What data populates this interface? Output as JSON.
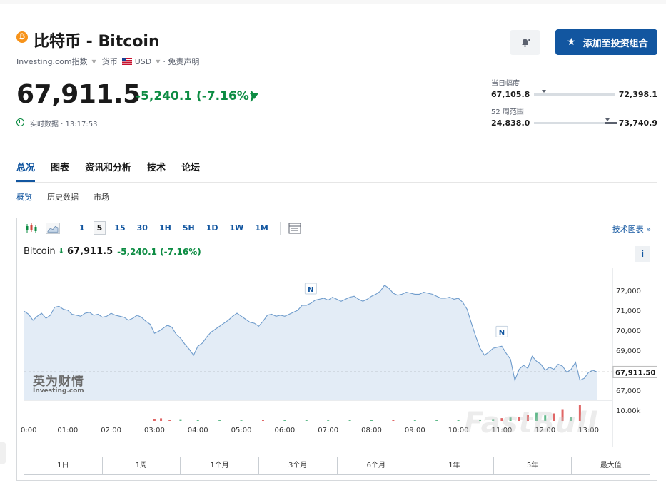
{
  "header": {
    "coin_symbol": "₿",
    "title": "比特币 - Bitcoin",
    "source": "Investing.com指数",
    "currency_label": "货币",
    "currency": "USD",
    "disclaimer": "· 免责声明"
  },
  "quote": {
    "price": "67,911.5",
    "change": "-5,240.1 (-7.16%)",
    "realtime": "实时数据 · 13:17:53",
    "change_color": "#0d8c43"
  },
  "actions": {
    "bell_icon": "bell-plus-icon",
    "add_portfolio": "添加至投资组合"
  },
  "ranges": {
    "day": {
      "label": "当日幅度",
      "low": "67,105.8",
      "high": "72,398.1",
      "position": 0.12
    },
    "week52": {
      "label": "52 周范围",
      "low": "24,838.0",
      "high": "73,740.9",
      "position": 0.88
    }
  },
  "tabs": [
    "总况",
    "图表",
    "资讯和分析",
    "技术",
    "论坛"
  ],
  "subtabs": [
    "概览",
    "历史数据",
    "市场"
  ],
  "chart_toolbar": {
    "intervals": [
      "1",
      "5",
      "15",
      "30",
      "1H",
      "5H",
      "1D",
      "1W",
      "1M"
    ],
    "active_interval": "5",
    "tech_chart_link": "技术图表 »"
  },
  "chart_legend": {
    "name": "Bitcoin",
    "price": "67,911.5",
    "change": "-5,240.1 (-7.16%)"
  },
  "chart_data": {
    "type": "area",
    "title": "",
    "xlabel": "",
    "ylabel": "",
    "x_ticks": [
      "0:00",
      "01:00",
      "02:00",
      "03:00",
      "04:00",
      "05:00",
      "06:00",
      "07:00",
      "08:00",
      "09:00",
      "10:00",
      "11:00",
      "12:00",
      "13:00"
    ],
    "y_ticks": [
      "72,000",
      "71,000",
      "70,000",
      "69,000",
      "68,000",
      "67,000"
    ],
    "ylim": [
      66500,
      73100
    ],
    "last_price_label": "67,911.50",
    "last_price": 67911.5,
    "volume_label": "10.00k",
    "news_markers": [
      {
        "hour": 6.6,
        "label": "N"
      },
      {
        "hour": 11.0,
        "label": "N"
      }
    ],
    "series": [
      {
        "x": [
          0,
          0.1,
          0.2,
          0.3,
          0.4,
          0.5,
          0.6,
          0.7,
          0.8,
          0.9,
          1.0,
          1.1,
          1.2,
          1.3,
          1.4,
          1.5,
          1.6,
          1.7,
          1.8,
          1.9,
          2.0,
          2.1,
          2.2,
          2.3,
          2.4,
          2.5,
          2.6,
          2.7,
          2.8,
          2.9,
          3.0,
          3.1,
          3.2,
          3.3,
          3.4,
          3.5,
          3.6,
          3.7,
          3.8,
          3.9,
          4.0,
          4.1,
          4.2,
          4.3,
          4.4,
          4.5,
          4.6,
          4.7,
          4.8,
          4.9,
          5.0,
          5.1,
          5.2,
          5.3,
          5.4,
          5.5,
          5.6,
          5.7,
          5.8,
          5.9,
          6.0,
          6.1,
          6.2,
          6.3,
          6.4,
          6.5,
          6.6,
          6.7,
          6.8,
          6.9,
          7.0,
          7.1,
          7.2,
          7.3,
          7.4,
          7.5,
          7.6,
          7.7,
          7.8,
          7.9,
          8.0,
          8.1,
          8.2,
          8.3,
          8.4,
          8.5,
          8.6,
          8.7,
          8.8,
          8.9,
          9.0,
          9.1,
          9.2,
          9.3,
          9.4,
          9.5,
          9.6,
          9.7,
          9.8,
          9.9,
          10.0,
          10.1,
          10.2,
          10.3,
          10.4,
          10.5,
          10.6,
          10.7,
          10.8,
          10.9,
          11.0,
          11.1,
          11.2,
          11.3,
          11.4,
          11.5,
          11.6,
          11.7,
          11.8,
          11.9,
          12.0,
          12.1,
          12.2,
          12.3,
          12.4,
          12.5,
          12.6,
          12.7,
          12.8,
          12.9,
          13.0,
          13.1,
          13.2
        ],
        "values": [
          70950,
          70800,
          70500,
          70700,
          70850,
          70600,
          70750,
          71150,
          71200,
          71050,
          71000,
          70800,
          70750,
          70700,
          70850,
          70900,
          70750,
          70800,
          70650,
          70700,
          70850,
          70750,
          70700,
          70650,
          70500,
          70600,
          70750,
          70650,
          70450,
          70300,
          69850,
          69950,
          70100,
          70250,
          70150,
          69800,
          69600,
          69300,
          69050,
          68750,
          69200,
          69350,
          69650,
          69900,
          70050,
          70200,
          70350,
          70500,
          70700,
          70850,
          70700,
          70550,
          70400,
          70350,
          70200,
          70450,
          70750,
          70800,
          70700,
          70750,
          70700,
          70800,
          70900,
          71000,
          71250,
          71250,
          71350,
          71500,
          71550,
          71600,
          71500,
          71650,
          71550,
          71450,
          71550,
          71650,
          71700,
          71550,
          71450,
          71550,
          71700,
          71800,
          71950,
          72250,
          72100,
          71850,
          71750,
          71800,
          71900,
          71850,
          71800,
          71800,
          71900,
          71850,
          71800,
          71700,
          71600,
          71600,
          71650,
          71550,
          71600,
          71400,
          71050,
          70350,
          69700,
          69100,
          68750,
          68900,
          69100,
          69150,
          69200,
          68850,
          68550,
          67500,
          68050,
          68250,
          68100,
          68700,
          68450,
          68300,
          68000,
          68150,
          68050,
          68300,
          68200,
          67900,
          68050,
          68400,
          67500,
          67600,
          67900,
          68000,
          67911
        ]
      }
    ],
    "volume": {
      "x": [
        3.0,
        3.15,
        3.35,
        3.6,
        4.0,
        4.5,
        5.0,
        5.5,
        6.0,
        6.5,
        7.0,
        7.5,
        8.0,
        8.5,
        9.0,
        9.5,
        10.0,
        10.5,
        10.8,
        11.0,
        11.2,
        11.4,
        11.6,
        11.8,
        12.0,
        12.2,
        12.4,
        12.6,
        12.8
      ],
      "values": [
        1.0,
        1.2,
        0.6,
        0.8,
        0.5,
        0.4,
        0.3,
        0.6,
        0.4,
        0.5,
        0.3,
        0.5,
        0.4,
        0.6,
        0.5,
        0.4,
        0.5,
        0.6,
        0.9,
        1.3,
        1.6,
        2.0,
        3.0,
        3.8,
        2.6,
        3.5,
        5.5,
        2.0,
        7.5
      ],
      "up": [
        true,
        true,
        true,
        false,
        false,
        false,
        false,
        true,
        false,
        false,
        false,
        false,
        false,
        true,
        false,
        false,
        false,
        false,
        false,
        true,
        false,
        true,
        true,
        false,
        false,
        true,
        true,
        false,
        true
      ]
    }
  },
  "periods": [
    "1日",
    "1周",
    "1个月",
    "3个月",
    "6个月",
    "1年",
    "5年",
    "最大值"
  ],
  "watermark": "FastBull",
  "chart_logo": {
    "big": "英为财情",
    "small": "Investing.com"
  }
}
